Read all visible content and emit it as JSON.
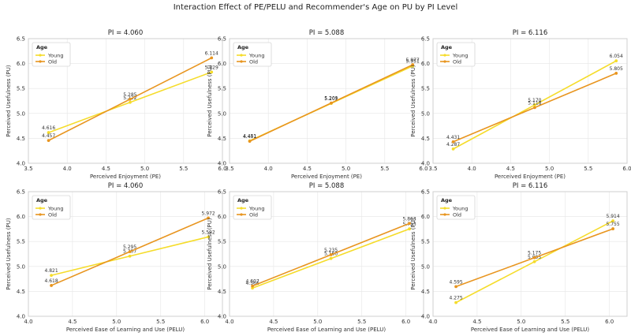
{
  "title": "Interaction Effect of PE/PELU and Recommender's Age on PU by PI Level",
  "colors": {
    "Young": "#f5dc2b",
    "Old": "#e8951f"
  },
  "chart_data": [
    {
      "type": "line",
      "title": "PI = 4.060",
      "xlabel": "Perceived Enjoyment (PE)",
      "ylabel": "Perceived Usefulness (PU)",
      "xlim": [
        3.5,
        6.0
      ],
      "ylim": [
        4.0,
        6.5
      ],
      "xticks": [
        "3.5",
        "4.0",
        "4.5",
        "5.0",
        "5.5",
        "6.0"
      ],
      "yticks": [
        "4.0",
        "4.5",
        "5.0",
        "5.5",
        "6.0",
        "6.5"
      ],
      "legend": {
        "title": "Age",
        "position": "top-left"
      },
      "series": [
        {
          "name": "Young",
          "x": [
            3.76,
            4.81,
            5.86
          ],
          "y": [
            4.616,
            5.222,
            5.829
          ],
          "labels": [
            "4.616",
            "5.222",
            "5.829"
          ]
        },
        {
          "name": "Old",
          "x": [
            3.76,
            4.81,
            5.86
          ],
          "y": [
            4.457,
            5.285,
            6.114
          ],
          "labels": [
            "4.457",
            "5.285",
            "6.114"
          ]
        }
      ]
    },
    {
      "type": "line",
      "title": "PI = 5.088",
      "xlabel": "Perceived Enjoyment (PE)",
      "ylabel": "Perceived Usefulness (PU)",
      "xlim": [
        3.5,
        6.0
      ],
      "ylim": [
        4.0,
        6.5
      ],
      "xticks": [
        "3.5",
        "4.0",
        "4.5",
        "5.0",
        "5.5",
        "6.0"
      ],
      "yticks": [
        "4.0",
        "4.5",
        "5.0",
        "5.5",
        "6.0",
        "6.5"
      ],
      "legend": {
        "title": "Age",
        "position": "top-left"
      },
      "series": [
        {
          "name": "Young",
          "x": [
            3.76,
            4.81,
            5.86
          ],
          "y": [
            4.451,
            5.201,
            5.951
          ],
          "labels": [
            "4.451",
            "5.201",
            "5.951"
          ]
        },
        {
          "name": "Old",
          "x": [
            3.76,
            4.81,
            5.86
          ],
          "y": [
            4.441,
            5.209,
            5.977
          ],
          "labels": [
            "4.441",
            "5.209",
            "5.977"
          ]
        }
      ]
    },
    {
      "type": "line",
      "title": "PI = 6.116",
      "xlabel": "Perceived Enjoyment (PE)",
      "ylabel": "Perceived Usefulness (PU)",
      "xlim": [
        3.5,
        6.0
      ],
      "ylim": [
        4.0,
        6.5
      ],
      "xticks": [
        "3.5",
        "4.0",
        "4.5",
        "5.0",
        "5.5",
        "6.0"
      ],
      "yticks": [
        "4.0",
        "4.5",
        "5.0",
        "5.5",
        "6.0",
        "6.5"
      ],
      "legend": {
        "title": "Age",
        "position": "top-left"
      },
      "series": [
        {
          "name": "Young",
          "x": [
            3.76,
            4.81,
            5.86
          ],
          "y": [
            4.287,
            5.17,
            6.054
          ],
          "labels": [
            "4.287",
            "5.170",
            "6.054"
          ]
        },
        {
          "name": "Old",
          "x": [
            3.76,
            4.81,
            5.86
          ],
          "y": [
            4.431,
            5.118,
            5.805
          ],
          "labels": [
            "4.431",
            "5.118",
            "5.805"
          ]
        }
      ]
    },
    {
      "type": "line",
      "title": "PI = 4.060",
      "xlabel": "Perceived Ease of Learning and Use (PELU)",
      "ylabel": "Perceived Usefulness (PU)",
      "xlim": [
        4.0,
        6.2
      ],
      "ylim": [
        4.0,
        6.5
      ],
      "xticks": [
        "4.0",
        "4.5",
        "5.0",
        "5.5",
        "6.0"
      ],
      "yticks": [
        "4.0",
        "4.5",
        "5.0",
        "5.5",
        "6.0",
        "6.5"
      ],
      "legend": {
        "title": "Age",
        "position": "top-left"
      },
      "series": [
        {
          "name": "Young",
          "x": [
            4.26,
            5.15,
            6.04
          ],
          "y": [
            4.821,
            5.207,
            5.592
          ],
          "labels": [
            "4.821",
            "5.207",
            "5.592"
          ]
        },
        {
          "name": "Old",
          "x": [
            4.26,
            5.15,
            6.04
          ],
          "y": [
            4.618,
            5.295,
            5.972
          ],
          "labels": [
            "4.618",
            "5.295",
            "5.972"
          ]
        }
      ]
    },
    {
      "type": "line",
      "title": "PI = 5.088",
      "xlabel": "Perceived Ease of Learning and Use (PELU)",
      "ylabel": "Perceived Usefulness (PU)",
      "xlim": [
        4.0,
        6.2
      ],
      "ylim": [
        4.0,
        6.5
      ],
      "xticks": [
        "4.0",
        "4.5",
        "5.0",
        "5.5",
        "6.0"
      ],
      "yticks": [
        "4.0",
        "4.5",
        "5.0",
        "5.5",
        "6.0",
        "6.5"
      ],
      "legend": {
        "title": "Age",
        "position": "top-left"
      },
      "series": [
        {
          "name": "Young",
          "x": [
            4.26,
            5.15,
            6.04
          ],
          "y": [
            4.566,
            5.16,
            5.753
          ],
          "labels": [
            "4.566",
            "5.160",
            "5.753"
          ]
        },
        {
          "name": "Old",
          "x": [
            4.26,
            5.15,
            6.04
          ],
          "y": [
            4.607,
            5.235,
            5.863
          ],
          "labels": [
            "4.607",
            "5.235",
            "5.863"
          ]
        }
      ]
    },
    {
      "type": "line",
      "title": "PI = 6.116",
      "xlabel": "Perceived Ease of Learning and Use (PELU)",
      "ylabel": "Perceived Usefulness (PU)",
      "xlim": [
        4.0,
        6.2
      ],
      "ylim": [
        4.0,
        6.5
      ],
      "xticks": [
        "4.0",
        "4.5",
        "5.0",
        "5.5",
        "6.0"
      ],
      "yticks": [
        "4.0",
        "4.5",
        "5.0",
        "5.5",
        "6.0",
        "6.5"
      ],
      "legend": {
        "title": "Age",
        "position": "top-left"
      },
      "series": [
        {
          "name": "Young",
          "x": [
            4.26,
            5.15,
            6.04
          ],
          "y": [
            4.275,
            5.095,
            5.914
          ],
          "labels": [
            "4.275",
            "5.095",
            "5.914"
          ]
        },
        {
          "name": "Old",
          "x": [
            4.26,
            5.15,
            6.04
          ],
          "y": [
            4.595,
            5.175,
            5.755
          ],
          "labels": [
            "4.595",
            "5.175",
            "5.755"
          ]
        }
      ]
    }
  ]
}
